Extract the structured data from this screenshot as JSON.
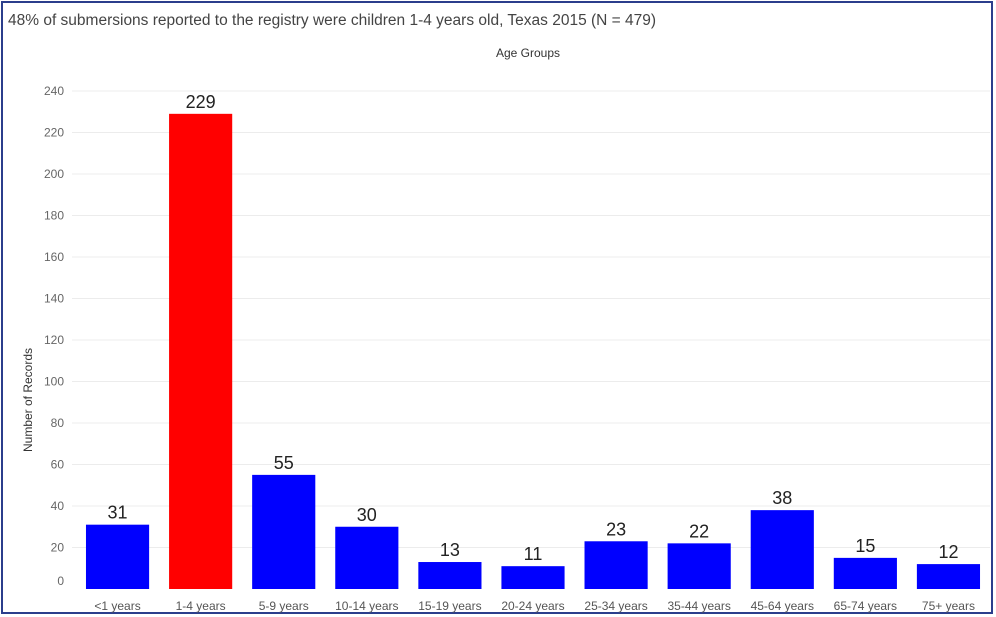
{
  "title": "48% of submersions reported to the registry were children 1-4 years old, Texas 2015 (N = 479)",
  "chart_data": {
    "type": "bar",
    "xlabel": "Age Groups",
    "xlabel_position": "top",
    "ylabel": "Number of Records",
    "ylim": [
      0,
      240
    ],
    "yticks": [
      0,
      20,
      40,
      60,
      80,
      100,
      120,
      140,
      160,
      180,
      200,
      220,
      240
    ],
    "grid": true,
    "categories": [
      "<1 years",
      "1-4 years",
      "5-9 years",
      "10-14 years",
      "15-19 years",
      "20-24 years",
      "25-34 years",
      "35-44 years",
      "45-64 years",
      "65-74 years",
      "75+ years"
    ],
    "values": [
      31,
      229,
      55,
      30,
      13,
      11,
      23,
      22,
      38,
      15,
      12
    ],
    "colors": [
      "#0000ff",
      "#ff0000",
      "#0000ff",
      "#0000ff",
      "#0000ff",
      "#0000ff",
      "#0000ff",
      "#0000ff",
      "#0000ff",
      "#0000ff",
      "#0000ff"
    ],
    "data_labels": true
  }
}
